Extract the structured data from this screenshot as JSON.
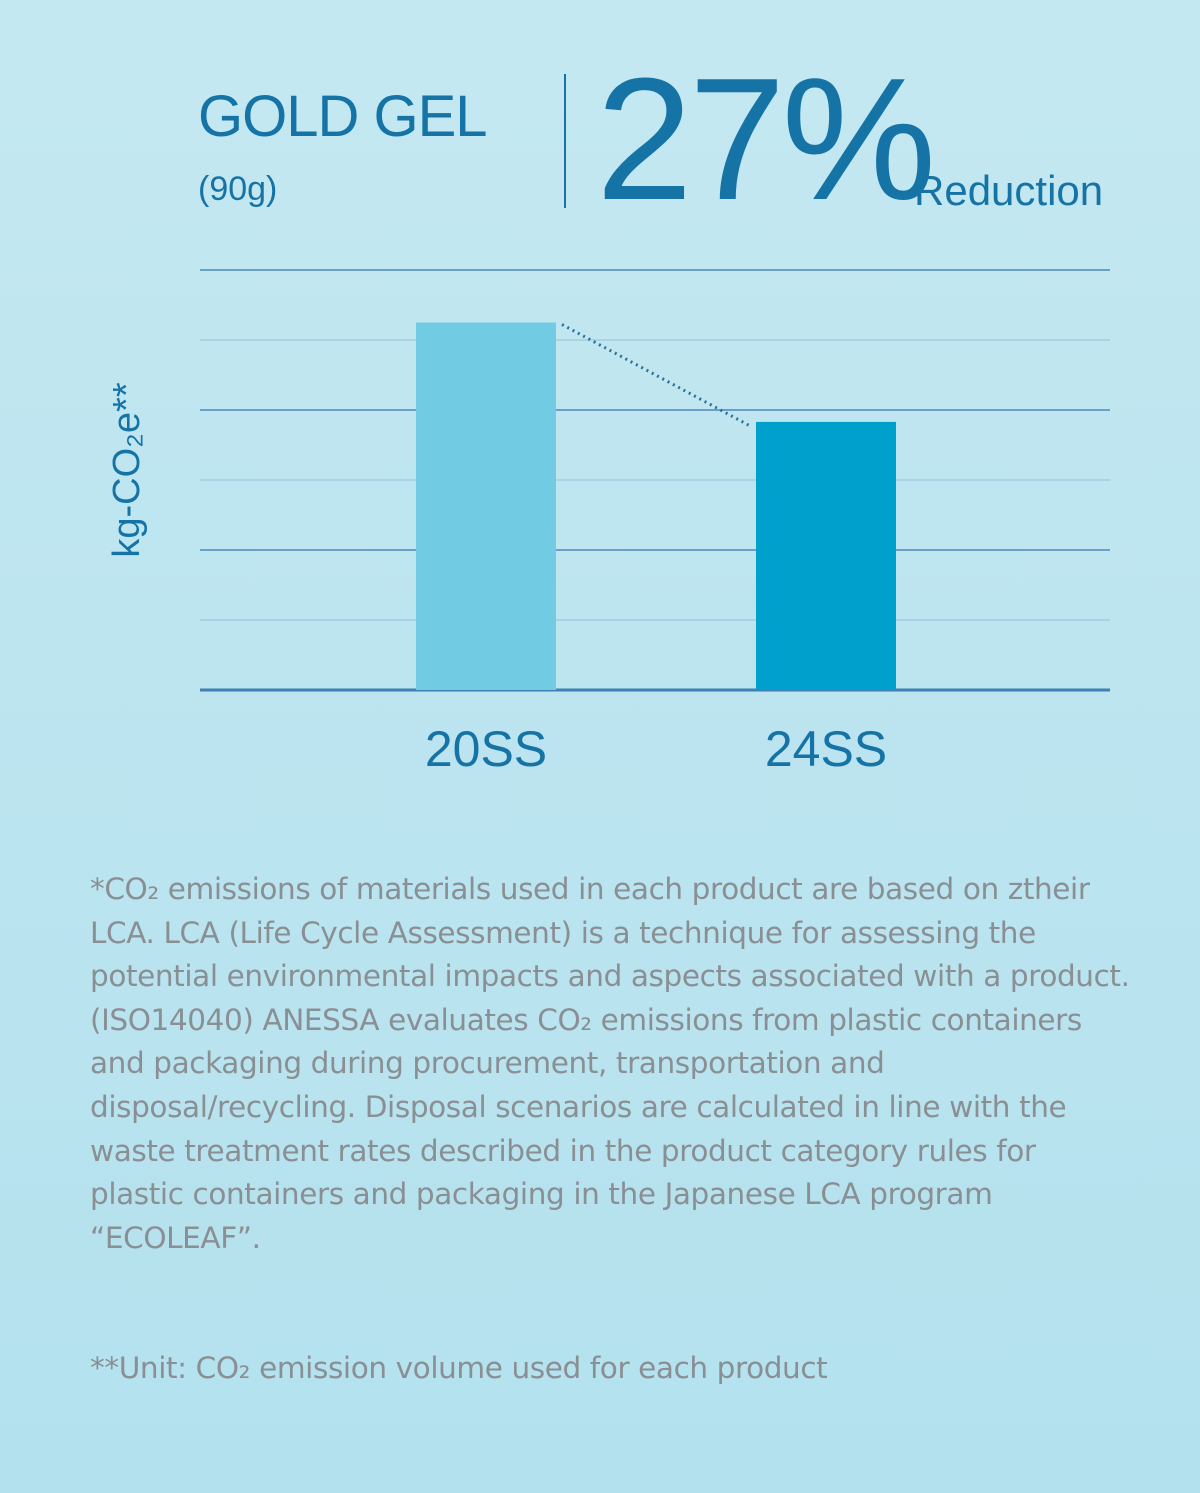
{
  "header": {
    "title": "GOLD GEL",
    "subtitle": "(90g)",
    "reduction_value": "27%",
    "reduction_label": "Reduction"
  },
  "colors": {
    "accent": "#1573a6",
    "bar_20ss": "#71cbe2",
    "bar_24ss": "#00a0cc",
    "gridline": "#3f7fb3",
    "footnote_text": "#8a8f94"
  },
  "chart_data": {
    "type": "bar",
    "title": "GOLD GEL",
    "ylabel": "kg-CO₂e**",
    "categories": [
      "20SS",
      "24SS"
    ],
    "values": [
      5.25,
      3.83
    ],
    "ylim": [
      0,
      6
    ],
    "grid": true,
    "trend_line": "dotted line connecting bar tops",
    "annotation": "27% Reduction"
  },
  "footnotes": {
    "note1": "*CO₂ emissions of materials used in each product are based on ztheir LCA. LCA (Life Cycle Assessment) is a technique for assessing the potential environmental impacts and aspects associated with a product. (ISO14040) ANESSA evaluates CO₂ emissions from plastic containers and packaging during procurement, transportation and disposal/recycling. Disposal scenarios are calculated in line with the waste treatment rates described in the product category rules for plastic containers and packaging in the Japanese LCA program “ECOLEAF”.",
    "note2": "**Unit: CO₂ emission volume used for each product"
  }
}
